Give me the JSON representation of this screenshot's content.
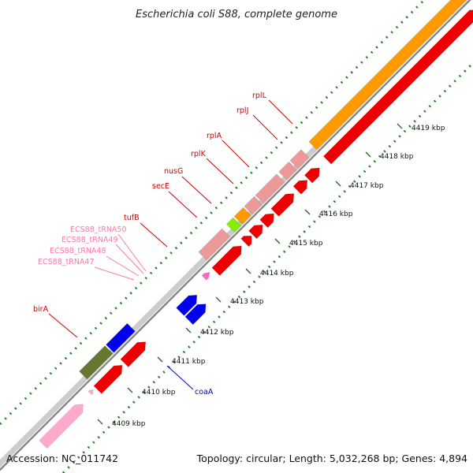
{
  "title": "Escherichia coli S88, complete genome",
  "footer": {
    "accession": "Accession: NC_011742",
    "topology": "Topology: circular; Length: 5,032,268 bp; Genes: 4,894"
  },
  "colors": {
    "cds": "#ee0000",
    "rRNA_tRNA_pink": "#ee9999",
    "orange": "#ff9900",
    "lime": "#88ee00",
    "blue": "#0000ee",
    "olive": "#667733",
    "light_pink": "#ffaacc",
    "magenta_trna": "#ff66cc",
    "tick_green": "#338833"
  },
  "ticks": [
    {
      "label": "4409 kbp"
    },
    {
      "label": "4410 kbp"
    },
    {
      "label": "4411 kbp"
    },
    {
      "label": "4412 kbp"
    },
    {
      "label": "4413 kbp"
    },
    {
      "label": "4414 kbp"
    },
    {
      "label": "4415 kbp"
    },
    {
      "label": "4416 kbp"
    },
    {
      "label": "4417 kbp"
    },
    {
      "label": "4418 kbp"
    },
    {
      "label": "4419 kbp"
    }
  ],
  "genes": [
    {
      "name": "rplL",
      "color": "#cc0000"
    },
    {
      "name": "rplJ",
      "color": "#cc0000"
    },
    {
      "name": "rplA",
      "color": "#cc0000"
    },
    {
      "name": "rplK",
      "color": "#cc0000"
    },
    {
      "name": "nusG",
      "color": "#cc0000"
    },
    {
      "name": "secE",
      "color": "#cc0000"
    },
    {
      "name": "tufB",
      "color": "#cc0000"
    },
    {
      "name": "ECS88_tRNA50",
      "color": "#ff77aa"
    },
    {
      "name": "ECS88_tRNA49",
      "color": "#ff77aa"
    },
    {
      "name": "ECS88_tRNA48",
      "color": "#ff77aa"
    },
    {
      "name": "ECS88_tRNA47",
      "color": "#ff77aa"
    },
    {
      "name": "birA",
      "color": "#cc0000"
    },
    {
      "name": "coaA",
      "color": "#0000cc"
    }
  ]
}
